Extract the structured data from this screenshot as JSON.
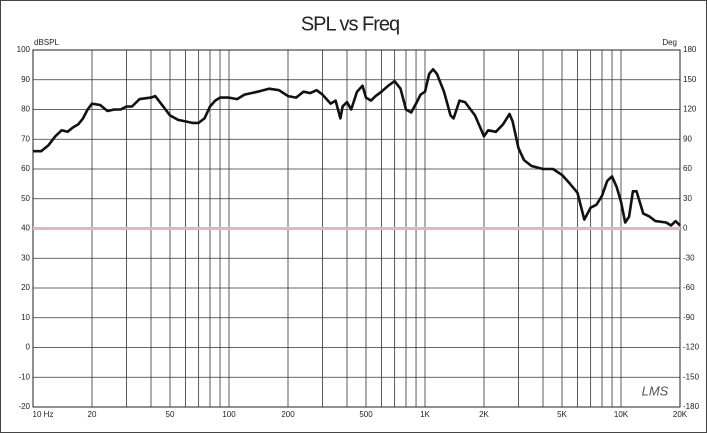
{
  "chart_data": {
    "type": "line",
    "title": "SPL vs Freq",
    "y_label": "dBSPL",
    "y2_label": "Deg",
    "logo": "LMS",
    "xscale": "log",
    "xlim": [
      10,
      20000
    ],
    "ylim": [
      -20,
      100
    ],
    "y2lim": [
      -180,
      180
    ],
    "xticks": [
      {
        "value": 10,
        "label": "10 Hz"
      },
      20,
      50,
      100,
      200,
      500,
      {
        "value": 1000,
        "label": "1K"
      },
      {
        "value": 2000,
        "label": "2K"
      },
      {
        "value": 5000,
        "label": "5K"
      },
      {
        "value": 10000,
        "label": "10K"
      },
      {
        "value": 20000,
        "label": "20K"
      }
    ],
    "xgrid": [
      10,
      20,
      30,
      40,
      50,
      60,
      70,
      80,
      90,
      100,
      200,
      300,
      400,
      500,
      600,
      700,
      800,
      900,
      1000,
      2000,
      3000,
      4000,
      5000,
      6000,
      7000,
      8000,
      9000,
      10000,
      20000
    ],
    "yticks": [
      -20,
      -10,
      0,
      10,
      20,
      30,
      40,
      50,
      60,
      70,
      80,
      90,
      100
    ],
    "y2ticks": [
      -180,
      -150,
      -120,
      -90,
      -60,
      -30,
      0,
      30,
      60,
      90,
      120,
      150,
      180
    ],
    "grid": true,
    "phase_line": {
      "value": 0,
      "axis": "y2",
      "color": "#e6b3c3"
    },
    "series": [
      {
        "color": "#111111",
        "x": [
          10,
          11,
          12,
          13,
          14,
          15,
          16,
          17,
          18,
          19,
          20,
          22,
          24,
          26,
          28,
          30,
          32,
          35,
          40,
          42,
          45,
          50,
          55,
          60,
          65,
          70,
          75,
          80,
          85,
          90,
          100,
          110,
          120,
          140,
          160,
          180,
          200,
          220,
          240,
          260,
          280,
          300,
          330,
          350,
          370,
          380,
          400,
          420,
          450,
          480,
          500,
          530,
          560,
          600,
          650,
          700,
          750,
          800,
          850,
          900,
          950,
          1000,
          1050,
          1100,
          1150,
          1250,
          1350,
          1400,
          1500,
          1600,
          1800,
          2000,
          2100,
          2300,
          2500,
          2700,
          2800,
          3000,
          3200,
          3500,
          4000,
          4500,
          5000,
          5500,
          6000,
          6500,
          7000,
          7500,
          8000,
          8500,
          9000,
          9500,
          10000,
          10500,
          11000,
          11500,
          12000,
          13000,
          14000,
          15000,
          17000,
          18000,
          19000,
          20000
        ],
        "values": [
          66,
          66,
          68,
          71,
          73,
          72.5,
          74,
          75,
          77,
          80,
          82,
          81.5,
          79.5,
          80,
          80,
          81,
          81,
          83.5,
          84,
          84.5,
          82,
          78,
          76.5,
          76,
          75.5,
          75.5,
          77,
          81,
          83,
          84,
          84,
          83.5,
          85,
          86,
          87,
          86.5,
          84.5,
          84,
          86,
          85.5,
          86.5,
          85,
          82,
          83,
          77,
          81,
          82.5,
          80,
          86,
          88,
          84,
          83,
          84.5,
          86,
          88,
          89.5,
          87,
          80,
          79,
          82,
          85,
          86,
          92,
          93.5,
          92,
          86,
          78,
          77,
          83,
          82.5,
          78,
          71,
          73,
          72.5,
          75,
          78.5,
          76,
          67,
          63,
          61,
          60,
          60,
          58,
          55,
          52,
          43,
          47,
          48,
          51,
          56,
          57.5,
          54,
          49,
          42,
          44,
          52.5,
          52.5,
          45,
          44,
          42.5,
          42,
          41,
          42.5,
          41
        ]
      }
    ]
  }
}
